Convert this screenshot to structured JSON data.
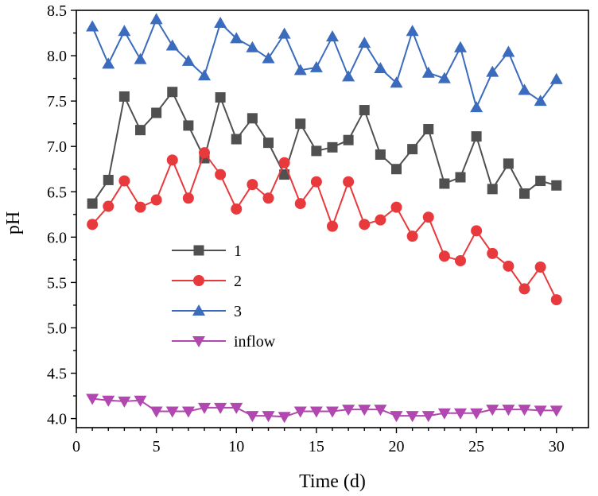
{
  "chart_data": {
    "type": "line",
    "title": "",
    "xlabel": "Time (d)",
    "ylabel": "pH",
    "xlim": [
      0,
      32
    ],
    "ylim": [
      3.9,
      8.5
    ],
    "xticks": [
      0,
      5,
      10,
      15,
      20,
      25,
      30
    ],
    "yticks": [
      4.0,
      4.5,
      5.0,
      5.5,
      6.0,
      6.5,
      7.0,
      7.5,
      8.0,
      8.5
    ],
    "ytick_labels": [
      "4.0",
      "4.5",
      "5.0",
      "5.5",
      "6.0",
      "6.5",
      "7.0",
      "7.5",
      "8.0",
      "8.5"
    ],
    "grid": false,
    "legend_position": "center-left",
    "x": [
      1,
      2,
      3,
      4,
      5,
      6,
      7,
      8,
      9,
      10,
      11,
      12,
      13,
      14,
      15,
      16,
      17,
      18,
      19,
      20,
      21,
      22,
      23,
      24,
      25,
      26,
      27,
      28,
      29,
      30
    ],
    "series": [
      {
        "name": "1",
        "color": "#505050",
        "marker": "square",
        "values": [
          6.37,
          6.63,
          7.55,
          7.18,
          7.37,
          7.6,
          7.23,
          6.87,
          7.54,
          7.08,
          7.31,
          7.04,
          6.69,
          7.25,
          6.95,
          6.99,
          7.07,
          7.4,
          6.91,
          6.75,
          6.97,
          7.19,
          6.59,
          6.66,
          7.11,
          6.53,
          6.81,
          6.48,
          6.62,
          6.57
        ]
      },
      {
        "name": "2",
        "color": "#e8393c",
        "marker": "circle",
        "values": [
          6.14,
          6.34,
          6.62,
          6.33,
          6.41,
          6.85,
          6.43,
          6.93,
          6.69,
          6.31,
          6.58,
          6.43,
          6.82,
          6.37,
          6.61,
          6.12,
          6.61,
          6.14,
          6.19,
          6.33,
          6.01,
          6.22,
          5.79,
          5.74,
          6.07,
          5.82,
          5.68,
          5.43,
          5.67,
          5.31
        ]
      },
      {
        "name": "3",
        "color": "#3a6bbd",
        "marker": "triangle-up",
        "values": [
          8.32,
          7.91,
          8.27,
          7.96,
          8.4,
          8.11,
          7.94,
          7.78,
          8.36,
          8.19,
          8.09,
          7.97,
          8.24,
          7.84,
          7.87,
          8.21,
          7.77,
          8.14,
          7.86,
          7.7,
          8.27,
          7.81,
          7.75,
          8.09,
          7.43,
          7.82,
          8.04,
          7.62,
          7.5,
          7.74
        ]
      },
      {
        "name": "inflow",
        "color": "#b048b0",
        "marker": "triangle-down",
        "values": [
          4.22,
          4.2,
          4.19,
          4.2,
          4.08,
          4.08,
          4.08,
          4.12,
          4.12,
          4.12,
          4.03,
          4.03,
          4.02,
          4.08,
          4.08,
          4.08,
          4.1,
          4.1,
          4.1,
          4.03,
          4.03,
          4.03,
          4.06,
          4.06,
          4.06,
          4.1,
          4.1,
          4.1,
          4.09,
          4.09
        ]
      }
    ]
  }
}
